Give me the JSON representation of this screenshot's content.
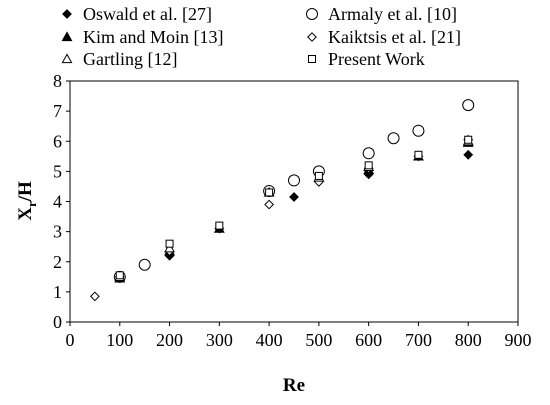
{
  "chart_data": {
    "type": "scatter",
    "title": "",
    "xlabel": "Re",
    "ylabel": {
      "main": "X",
      "sub": "r",
      "tail": "/H"
    },
    "xlim": [
      0,
      900
    ],
    "ylim": [
      0,
      8
    ],
    "xticks": [
      0,
      100,
      200,
      300,
      400,
      500,
      600,
      700,
      800,
      900
    ],
    "yticks": [
      0,
      1,
      2,
      3,
      4,
      5,
      6,
      7,
      8
    ],
    "grid": false,
    "legend_position": "top",
    "series": [
      {
        "name": "Oswald et al. [27]",
        "marker": "filled-diamond",
        "points": [
          [
            100,
            1.45
          ],
          [
            200,
            2.2
          ],
          [
            300,
            3.1
          ],
          [
            450,
            4.15
          ],
          [
            600,
            4.9
          ],
          [
            700,
            5.5
          ],
          [
            800,
            5.55
          ]
        ]
      },
      {
        "name": "Armaly et al. [10]",
        "marker": "open-circle",
        "points": [
          [
            100,
            1.5
          ],
          [
            150,
            1.9
          ],
          [
            400,
            4.35
          ],
          [
            450,
            4.7
          ],
          [
            500,
            5.0
          ],
          [
            600,
            5.6
          ],
          [
            650,
            6.1
          ],
          [
            700,
            6.35
          ],
          [
            800,
            7.2
          ]
        ]
      },
      {
        "name": "Kim and Moin [13]",
        "marker": "filled-triangle",
        "points": [
          [
            100,
            1.45
          ],
          [
            200,
            2.35
          ],
          [
            300,
            3.1
          ],
          [
            600,
            5.05
          ],
          [
            700,
            5.5
          ],
          [
            800,
            5.95
          ]
        ]
      },
      {
        "name": "Kaiktsis et al. [21]",
        "marker": "open-diamond",
        "points": [
          [
            50,
            0.85
          ],
          [
            100,
            1.5
          ],
          [
            200,
            2.35
          ],
          [
            400,
            3.9
          ],
          [
            500,
            4.65
          ],
          [
            600,
            5.1
          ],
          [
            800,
            6.05
          ]
        ]
      },
      {
        "name": "Gartling [12]",
        "marker": "open-triangle",
        "points": [
          [
            100,
            1.5
          ],
          [
            200,
            2.45
          ],
          [
            400,
            4.3
          ],
          [
            500,
            4.8
          ],
          [
            600,
            5.15
          ],
          [
            800,
            6.0
          ]
        ]
      },
      {
        "name": "Present Work",
        "marker": "open-square",
        "points": [
          [
            100,
            1.55
          ],
          [
            200,
            2.6
          ],
          [
            300,
            3.2
          ],
          [
            400,
            4.3
          ],
          [
            500,
            4.85
          ],
          [
            600,
            5.2
          ],
          [
            700,
            5.55
          ],
          [
            800,
            6.05
          ]
        ]
      }
    ]
  }
}
